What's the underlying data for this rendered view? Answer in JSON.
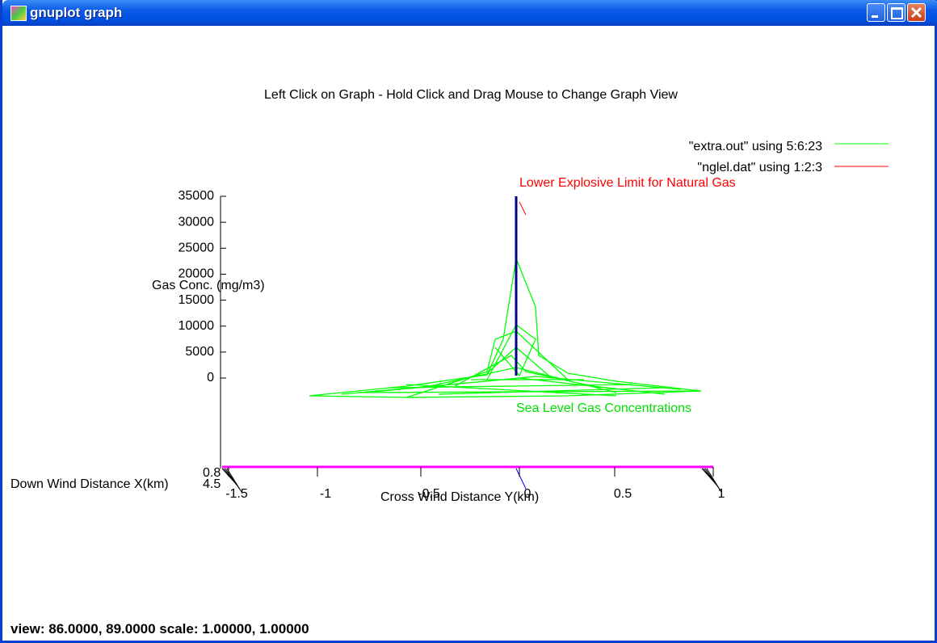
{
  "window": {
    "title": "gnuplot graph"
  },
  "plot": {
    "instruction": "Left Click on Graph - Hold Click and Drag Mouse to Change Graph View",
    "legend": [
      "\"extra.out\" using 5:6:23",
      "\"nglel.dat\" using 1:2:3"
    ],
    "annotations": {
      "limit": "Lower Explosive Limit for Natural Gas",
      "sea_level": "Sea Level Gas Concentrations"
    },
    "z_label": "Gas Conc. (mg/m3)",
    "z_ticks": [
      "35000",
      "30000",
      "25000",
      "20000",
      "15000",
      "10000",
      "5000",
      "0"
    ],
    "x_label": "Cross Wind Distance Y(km)",
    "x_ticks": [
      "-1.5",
      "-1",
      "-0.5",
      "0",
      "0.5",
      "1"
    ],
    "y_label": "Down Wind Distance X(km)",
    "y_ticks": [
      "0.8",
      "4.5"
    ]
  },
  "status": "view: 86.0000, 89.0000   scale: 1.00000, 1.00000"
}
